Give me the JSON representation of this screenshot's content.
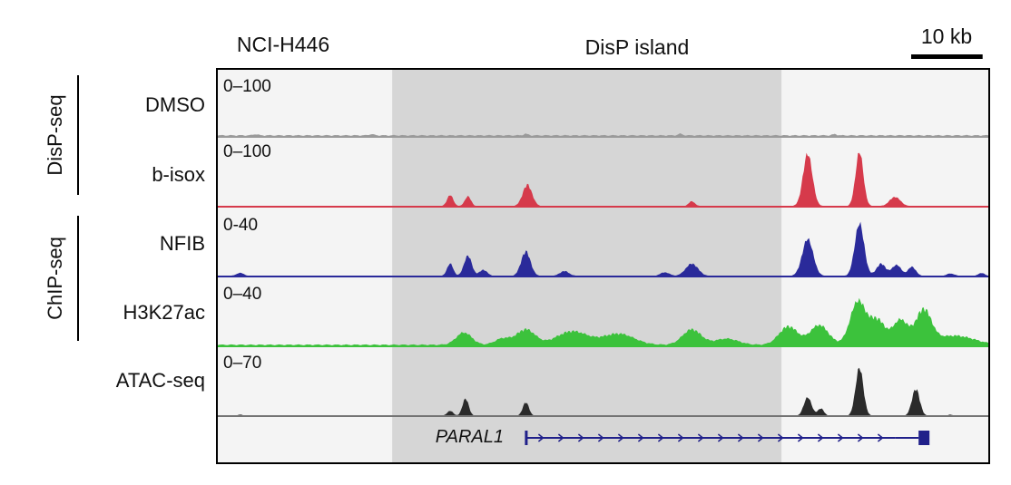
{
  "header": {
    "cell_line": "NCI-H446",
    "region": "DisP island",
    "scale_bar": "10 kb"
  },
  "groups": [
    {
      "label": "DisP-seq",
      "tracks": [
        0,
        1
      ]
    },
    {
      "label": "ChIP-seq",
      "tracks": [
        2,
        3
      ]
    }
  ],
  "tracks": [
    {
      "label": "DMSO",
      "range": "0–100",
      "color": "#9a9a9a",
      "peaks": [
        [
          0.05,
          0.02,
          0.003
        ],
        [
          0.2,
          0.02,
          0.003
        ],
        [
          0.4,
          0.025,
          0.003
        ],
        [
          0.6,
          0.025,
          0.003
        ],
        [
          0.8,
          0.02,
          0.003
        ]
      ],
      "baseline": 0.03
    },
    {
      "label": "b-isox",
      "range": "0–100",
      "color": "#d63a4b",
      "peaks": [
        [
          0.302,
          0.18,
          0.004
        ],
        [
          0.325,
          0.16,
          0.004
        ],
        [
          0.402,
          0.35,
          0.006
        ],
        [
          0.615,
          0.08,
          0.004
        ],
        [
          0.765,
          0.85,
          0.006
        ],
        [
          0.832,
          0.88,
          0.005
        ],
        [
          0.878,
          0.15,
          0.007
        ]
      ],
      "baseline": 0.01
    },
    {
      "label": "NFIB",
      "range": "0-40",
      "color": "#2a2a9a",
      "peaks": [
        [
          0.03,
          0.05,
          0.005
        ],
        [
          0.302,
          0.2,
          0.004
        ],
        [
          0.325,
          0.33,
          0.005
        ],
        [
          0.345,
          0.1,
          0.005
        ],
        [
          0.4,
          0.4,
          0.006
        ],
        [
          0.45,
          0.08,
          0.006
        ],
        [
          0.58,
          0.06,
          0.006
        ],
        [
          0.615,
          0.2,
          0.008
        ],
        [
          0.765,
          0.6,
          0.007
        ],
        [
          0.832,
          0.85,
          0.006
        ],
        [
          0.86,
          0.2,
          0.006
        ],
        [
          0.88,
          0.18,
          0.006
        ],
        [
          0.9,
          0.15,
          0.005
        ],
        [
          0.95,
          0.04,
          0.005
        ],
        [
          0.99,
          0.05,
          0.004
        ]
      ],
      "baseline": 0.01
    },
    {
      "label": "H3K27ac",
      "range": "0–40",
      "color": "#3cc23c",
      "peaks": [
        [
          0.32,
          0.2,
          0.01
        ],
        [
          0.37,
          0.1,
          0.01
        ],
        [
          0.4,
          0.25,
          0.012
        ],
        [
          0.46,
          0.22,
          0.02
        ],
        [
          0.52,
          0.18,
          0.02
        ],
        [
          0.615,
          0.25,
          0.012
        ],
        [
          0.66,
          0.1,
          0.015
        ],
        [
          0.74,
          0.3,
          0.012
        ],
        [
          0.78,
          0.32,
          0.012
        ],
        [
          0.83,
          0.7,
          0.01
        ],
        [
          0.855,
          0.4,
          0.01
        ],
        [
          0.885,
          0.4,
          0.01
        ],
        [
          0.915,
          0.55,
          0.01
        ],
        [
          0.945,
          0.1,
          0.02
        ],
        [
          0.97,
          0.08,
          0.02
        ]
      ],
      "baseline": 0.03
    },
    {
      "label": "ATAC-seq",
      "range": "0–70",
      "color": "#2b2b2b",
      "peaks": [
        [
          0.03,
          0.02,
          0.003
        ],
        [
          0.302,
          0.08,
          0.004
        ],
        [
          0.322,
          0.28,
          0.004
        ],
        [
          0.4,
          0.22,
          0.004
        ],
        [
          0.765,
          0.3,
          0.005
        ],
        [
          0.782,
          0.12,
          0.004
        ],
        [
          0.832,
          0.78,
          0.005
        ],
        [
          0.905,
          0.44,
          0.005
        ],
        [
          0.95,
          0.02,
          0.003
        ]
      ],
      "baseline": 0.005
    }
  ],
  "gene": {
    "name": "PARAL1",
    "start": 0.4,
    "end": 0.878,
    "color": "#20208a"
  },
  "highlight": {
    "start": 0.227,
    "end": 0.731,
    "color": "#d6d6d6"
  },
  "scale": {
    "bar_fraction": 0.0925
  }
}
